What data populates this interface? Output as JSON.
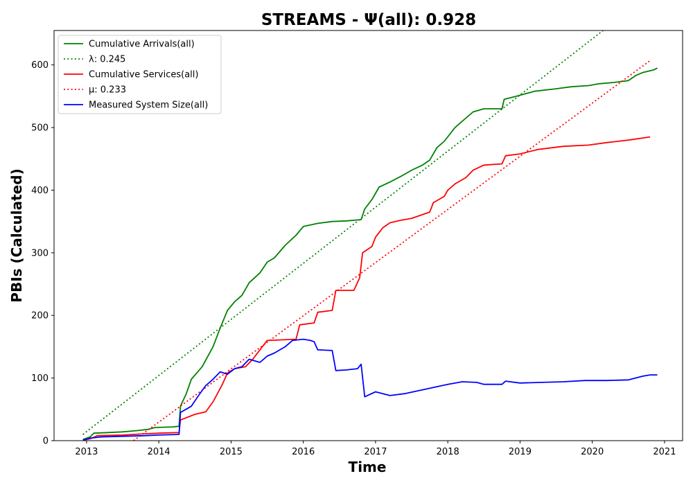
{
  "chart_data": {
    "type": "line",
    "title": "STREAMS -  Ψ(all): 0.928",
    "xlabel": "Time",
    "ylabel": "PBIs (Calculated)",
    "xlim": [
      2012.55,
      2021.25
    ],
    "ylim": [
      0,
      655
    ],
    "xticks": [
      2013,
      2014,
      2015,
      2016,
      2017,
      2018,
      2019,
      2020,
      2021
    ],
    "yticks": [
      0,
      100,
      200,
      300,
      400,
      500,
      600
    ],
    "grid": false,
    "legend_position": "top-left",
    "series": [
      {
        "name": "Cumulative Arrivals(all)",
        "style": "solid",
        "color": "#008000",
        "points": [
          [
            2012.95,
            2
          ],
          [
            2013.05,
            6
          ],
          [
            2013.1,
            12
          ],
          [
            2013.3,
            13
          ],
          [
            2013.5,
            14
          ],
          [
            2013.7,
            16
          ],
          [
            2013.85,
            18
          ],
          [
            2013.95,
            21
          ],
          [
            2014.2,
            22
          ],
          [
            2014.28,
            23
          ],
          [
            2014.3,
            55
          ],
          [
            2014.38,
            75
          ],
          [
            2014.45,
            98
          ],
          [
            2014.6,
            118
          ],
          [
            2014.75,
            150
          ],
          [
            2014.85,
            180
          ],
          [
            2014.95,
            208
          ],
          [
            2015.05,
            222
          ],
          [
            2015.15,
            232
          ],
          [
            2015.25,
            252
          ],
          [
            2015.4,
            268
          ],
          [
            2015.5,
            285
          ],
          [
            2015.6,
            292
          ],
          [
            2015.75,
            312
          ],
          [
            2015.9,
            328
          ],
          [
            2016.0,
            342
          ],
          [
            2016.2,
            347
          ],
          [
            2016.4,
            350
          ],
          [
            2016.6,
            351
          ],
          [
            2016.8,
            353
          ],
          [
            2016.85,
            370
          ],
          [
            2016.95,
            385
          ],
          [
            2017.05,
            405
          ],
          [
            2017.2,
            413
          ],
          [
            2017.35,
            422
          ],
          [
            2017.5,
            432
          ],
          [
            2017.65,
            440
          ],
          [
            2017.75,
            448
          ],
          [
            2017.85,
            468
          ],
          [
            2017.95,
            478
          ],
          [
            2018.1,
            500
          ],
          [
            2018.25,
            515
          ],
          [
            2018.35,
            525
          ],
          [
            2018.5,
            530
          ],
          [
            2018.75,
            530
          ],
          [
            2018.78,
            545
          ],
          [
            2018.95,
            550
          ],
          [
            2019.2,
            558
          ],
          [
            2019.5,
            562
          ],
          [
            2019.7,
            565
          ],
          [
            2019.95,
            567
          ],
          [
            2020.1,
            570
          ],
          [
            2020.3,
            572
          ],
          [
            2020.5,
            575
          ],
          [
            2020.6,
            583
          ],
          [
            2020.7,
            588
          ],
          [
            2020.85,
            592
          ],
          [
            2020.9,
            595
          ]
        ]
      },
      {
        "name": "λ: 0.245",
        "style": "dotted",
        "color": "#008000",
        "points": [
          [
            2012.95,
            10
          ],
          [
            2020.15,
            655
          ]
        ]
      },
      {
        "name": "Cumulative Services(all)",
        "style": "solid",
        "color": "#ff0000",
        "points": [
          [
            2012.95,
            1
          ],
          [
            2013.05,
            3
          ],
          [
            2013.15,
            8
          ],
          [
            2013.5,
            9
          ],
          [
            2013.8,
            11
          ],
          [
            2014.0,
            12
          ],
          [
            2014.28,
            13
          ],
          [
            2014.3,
            33
          ],
          [
            2014.5,
            42
          ],
          [
            2014.65,
            46
          ],
          [
            2014.75,
            62
          ],
          [
            2014.88,
            90
          ],
          [
            2014.95,
            108
          ],
          [
            2015.05,
            115
          ],
          [
            2015.2,
            118
          ],
          [
            2015.3,
            130
          ],
          [
            2015.4,
            145
          ],
          [
            2015.5,
            160
          ],
          [
            2015.9,
            162
          ],
          [
            2015.95,
            185
          ],
          [
            2016.15,
            188
          ],
          [
            2016.2,
            205
          ],
          [
            2016.4,
            208
          ],
          [
            2016.45,
            240
          ],
          [
            2016.7,
            240
          ],
          [
            2016.78,
            260
          ],
          [
            2016.82,
            300
          ],
          [
            2016.95,
            310
          ],
          [
            2017.0,
            325
          ],
          [
            2017.1,
            340
          ],
          [
            2017.2,
            348
          ],
          [
            2017.35,
            352
          ],
          [
            2017.5,
            355
          ],
          [
            2017.75,
            365
          ],
          [
            2017.8,
            380
          ],
          [
            2017.95,
            390
          ],
          [
            2018.0,
            400
          ],
          [
            2018.1,
            410
          ],
          [
            2018.25,
            420
          ],
          [
            2018.35,
            432
          ],
          [
            2018.5,
            440
          ],
          [
            2018.75,
            442
          ],
          [
            2018.8,
            455
          ],
          [
            2019.0,
            458
          ],
          [
            2019.25,
            465
          ],
          [
            2019.6,
            470
          ],
          [
            2019.95,
            472
          ],
          [
            2020.2,
            476
          ],
          [
            2020.5,
            480
          ],
          [
            2020.8,
            485
          ]
        ]
      },
      {
        "name": "μ: 0.233",
        "style": "dotted",
        "color": "#ff0000",
        "points": [
          [
            2013.65,
            0
          ],
          [
            2020.8,
            607
          ]
        ]
      },
      {
        "name": "Measured System Size(all)",
        "style": "solid",
        "color": "#0000ff",
        "points": [
          [
            2012.95,
            1
          ],
          [
            2013.05,
            4
          ],
          [
            2013.2,
            6
          ],
          [
            2013.5,
            7
          ],
          [
            2013.8,
            8
          ],
          [
            2014.0,
            9
          ],
          [
            2014.28,
            10
          ],
          [
            2014.3,
            45
          ],
          [
            2014.45,
            55
          ],
          [
            2014.55,
            72
          ],
          [
            2014.65,
            88
          ],
          [
            2014.75,
            98
          ],
          [
            2014.85,
            110
          ],
          [
            2014.95,
            106
          ],
          [
            2015.05,
            115
          ],
          [
            2015.15,
            118
          ],
          [
            2015.25,
            130
          ],
          [
            2015.4,
            125
          ],
          [
            2015.5,
            135
          ],
          [
            2015.6,
            140
          ],
          [
            2015.75,
            150
          ],
          [
            2015.85,
            160
          ],
          [
            2016.0,
            162
          ],
          [
            2016.1,
            160
          ],
          [
            2016.15,
            158
          ],
          [
            2016.2,
            145
          ],
          [
            2016.4,
            144
          ],
          [
            2016.45,
            112
          ],
          [
            2016.6,
            113
          ],
          [
            2016.75,
            115
          ],
          [
            2016.8,
            122
          ],
          [
            2016.85,
            70
          ],
          [
            2017.0,
            78
          ],
          [
            2017.2,
            72
          ],
          [
            2017.4,
            75
          ],
          [
            2017.6,
            80
          ],
          [
            2017.8,
            85
          ],
          [
            2018.0,
            90
          ],
          [
            2018.2,
            94
          ],
          [
            2018.4,
            93
          ],
          [
            2018.5,
            90
          ],
          [
            2018.75,
            90
          ],
          [
            2018.8,
            95
          ],
          [
            2019.0,
            92
          ],
          [
            2019.3,
            93
          ],
          [
            2019.6,
            94
          ],
          [
            2019.9,
            96
          ],
          [
            2020.2,
            96
          ],
          [
            2020.5,
            97
          ],
          [
            2020.7,
            103
          ],
          [
            2020.8,
            105
          ],
          [
            2020.9,
            105
          ]
        ]
      }
    ]
  }
}
